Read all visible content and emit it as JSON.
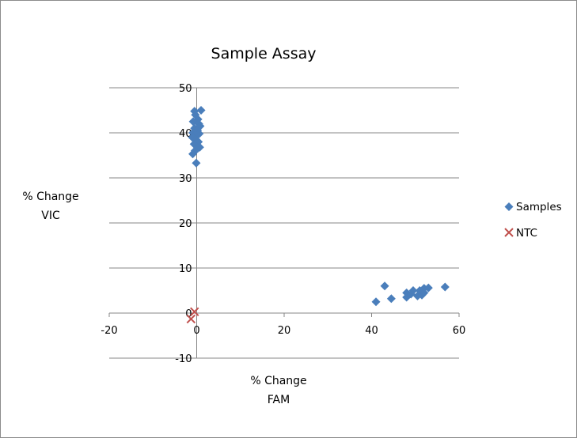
{
  "chart_data": {
    "type": "scatter",
    "title": "Sample Assay",
    "xlabel": [
      "% Change",
      "FAM"
    ],
    "ylabel": [
      "% Change",
      "VIC"
    ],
    "xlim": [
      -20,
      60
    ],
    "ylim": [
      -10,
      50
    ],
    "xticks": [
      -20,
      0,
      20,
      40,
      60
    ],
    "yticks": [
      -10,
      0,
      10,
      20,
      30,
      40,
      50
    ],
    "grid": "horizontal",
    "legend_position": "right",
    "series": [
      {
        "name": "Samples",
        "marker": "diamond",
        "color": "#4a7ebb",
        "points": [
          [
            -0.5,
            44.8
          ],
          [
            1.0,
            45.0
          ],
          [
            -0.3,
            44.0
          ],
          [
            0.3,
            43.0
          ],
          [
            -0.8,
            42.5
          ],
          [
            0.5,
            42.0
          ],
          [
            0.8,
            41.5
          ],
          [
            -0.5,
            41.0
          ],
          [
            0.2,
            40.5
          ],
          [
            -0.9,
            40.0
          ],
          [
            0.6,
            39.8
          ],
          [
            0.0,
            39.3
          ],
          [
            -1.0,
            39.0
          ],
          [
            -0.2,
            38.5
          ],
          [
            0.4,
            38.0
          ],
          [
            -0.6,
            37.5
          ],
          [
            0.7,
            36.8
          ],
          [
            0.2,
            36.5
          ],
          [
            -0.4,
            36.0
          ],
          [
            -0.9,
            35.3
          ],
          [
            -0.1,
            33.3
          ],
          [
            41.0,
            2.5
          ],
          [
            43.0,
            6.0
          ],
          [
            44.5,
            3.2
          ],
          [
            48.0,
            3.5
          ],
          [
            48.0,
            4.5
          ],
          [
            49.0,
            4.2
          ],
          [
            49.5,
            5.0
          ],
          [
            50.5,
            3.8
          ],
          [
            51.0,
            5.0
          ],
          [
            51.5,
            4.0
          ],
          [
            52.0,
            5.5
          ],
          [
            52.0,
            4.5
          ],
          [
            53.0,
            5.6
          ],
          [
            56.8,
            5.8
          ]
        ]
      },
      {
        "name": "NTC",
        "marker": "x",
        "color": "#c0504d",
        "points": [
          [
            -0.5,
            0.3
          ],
          [
            -1.3,
            -1.3
          ]
        ]
      }
    ]
  }
}
